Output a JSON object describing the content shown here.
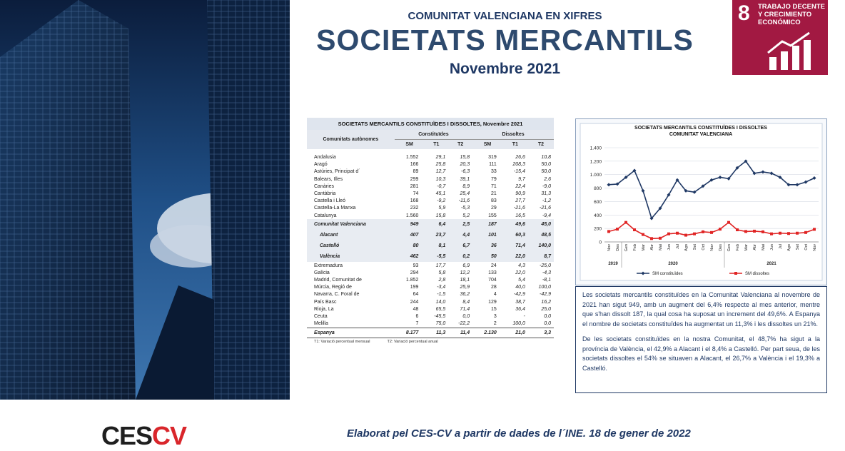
{
  "header": {
    "kicker": "COMUNITAT VALENCIANA EN XIFRES",
    "title": "SOCIETATS MERCANTILS",
    "subtitle": "Novembre 2021"
  },
  "sdg": {
    "number": "8",
    "label": "TRABAJO DECENTE Y CRECIMIENTO ECONÓMICO"
  },
  "table": {
    "title": "SOCIETATS MERCANTILS CONSTITUÏDES I DISSOLTES, Novembre 2021",
    "header": {
      "region": "Comunitats autònomes",
      "groups": [
        "Constituïdes",
        "Dissoltes"
      ],
      "columns": [
        "SM",
        "T1",
        "T2",
        "SM",
        "T1",
        "T2"
      ]
    },
    "rows": [
      [
        "Andalusia",
        "1.552",
        "29,1",
        "15,8",
        "319",
        "26,6",
        "10,8"
      ],
      [
        "Aragó",
        "166",
        "25,8",
        "20,3",
        "111",
        "208,3",
        "50,0"
      ],
      [
        "Astúries, Principat d´",
        "89",
        "12,7",
        "-6,3",
        "33",
        "-15,4",
        "50,0"
      ],
      [
        "Balears, Illes",
        "299",
        "10,3",
        "39,1",
        "79",
        "9,7",
        "2,6"
      ],
      [
        "Canàries",
        "281",
        "-0,7",
        "8,9",
        "71",
        "22,4",
        "-9,0"
      ],
      [
        "Cantàbria",
        "74",
        "45,1",
        "25,4",
        "21",
        "90,9",
        "31,3"
      ],
      [
        "Castella i Lleó",
        "168",
        "-9,2",
        "-11,6",
        "83",
        "27,7",
        "-1,2"
      ],
      [
        "Castella-La Manxa",
        "232",
        "5,9",
        "-5,3",
        "29",
        "-21,6",
        "-21,6"
      ],
      [
        "Catalunya",
        "1.560",
        "15,8",
        "5,2",
        "155",
        "16,5",
        "-9,4"
      ],
      [
        "Comunitat Valenciana",
        "949",
        "6,4",
        "2,5",
        "187",
        "49,6",
        "45,0"
      ],
      [
        "Alacant",
        "407",
        "23,7",
        "4,4",
        "101",
        "60,3",
        "48,5"
      ],
      [
        "Castelló",
        "80",
        "8,1",
        "6,7",
        "36",
        "71,4",
        "140,0"
      ],
      [
        "València",
        "462",
        "-5,5",
        "0,2",
        "50",
        "22,0",
        "8,7"
      ],
      [
        "Extremadura",
        "93",
        "17,7",
        "6,9",
        "24",
        "4,3",
        "-25,0"
      ],
      [
        "Galícia",
        "294",
        "5,8",
        "12,2",
        "133",
        "22,0",
        "-4,3"
      ],
      [
        "Madrid, Comunitat de",
        "1.852",
        "2,8",
        "18,1",
        "704",
        "5,4",
        "-8,1"
      ],
      [
        "Múrcia, Regió de",
        "199",
        "-3,4",
        "25,9",
        "28",
        "40,0",
        "100,0"
      ],
      [
        "Navarra, C. Foral de",
        "64",
        "-1,5",
        "36,2",
        "4",
        "-42,9",
        "-42,9"
      ],
      [
        "País Basc",
        "244",
        "14,0",
        "8,4",
        "129",
        "38,7",
        "16,2"
      ],
      [
        "Rioja, La",
        "48",
        "65,5",
        "71,4",
        "15",
        "36,4",
        "25,0"
      ],
      [
        "Ceuta",
        "6",
        "-45,5",
        "0,0",
        "3",
        "-",
        "0,0"
      ],
      [
        "Melilla",
        "7",
        "75,0",
        "-22,2",
        "2",
        "100,0",
        "0,0"
      ]
    ],
    "total": [
      "Espanya",
      "8.177",
      "11,3",
      "11,4",
      "2.130",
      "21,0",
      "3,3"
    ],
    "notes": [
      "T1: Variació percentual mensual",
      "T2: Variació percentual anual"
    ]
  },
  "chart_data": {
    "type": "line",
    "title": "SOCIETATS MERCANTILS CONSTITUÏDES I DISSOLTES",
    "subtitle": "COMUNITAT VALENCIANA",
    "categories": [
      "Nov",
      "Des",
      "Gen",
      "Feb",
      "Mar",
      "Abr",
      "Mai",
      "Jun",
      "Jul",
      "Ago",
      "Set",
      "Oct",
      "Nov",
      "Des",
      "Gen",
      "Feb",
      "Mar",
      "Abr",
      "Mai",
      "Jun",
      "Jul",
      "Ago",
      "Set",
      "Oct",
      "Nov"
    ],
    "years": [
      "2019",
      "2020",
      "2021"
    ],
    "series": [
      {
        "name": "SM constituïdes",
        "color": "#1f3864",
        "marker": "diamond",
        "values": [
          850,
          860,
          960,
          1060,
          760,
          350,
          500,
          700,
          920,
          760,
          740,
          830,
          920,
          960,
          940,
          1100,
          1200,
          1020,
          1040,
          1020,
          960,
          850,
          850,
          890,
          949
        ]
      },
      {
        "name": "SM dissoltes",
        "color": "#e02424",
        "marker": "square",
        "values": [
          155,
          190,
          290,
          180,
          110,
          50,
          55,
          120,
          130,
          100,
          120,
          150,
          140,
          190,
          290,
          180,
          155,
          160,
          150,
          120,
          130,
          125,
          130,
          140,
          187
        ]
      }
    ],
    "ylim": [
      0,
      1400
    ],
    "yticks": [
      0,
      200,
      400,
      600,
      800,
      {
        "value": 1000,
        "label": "1.000"
      },
      {
        "value": 1200,
        "label": "1.200"
      },
      {
        "value": 1400,
        "label": "1.400"
      }
    ],
    "grid": true,
    "legend": "bottom"
  },
  "text": [
    "Les societats mercantils constituïdes en la Comunitat Valenciana al novembre de 2021 han sigut 949, amb un augment del 6,4% respecte al mes anterior, mentre que s'han dissolt 187, la qual cosa ha suposat un increment del 49,6%. A Espanya el nombre de societats constituïdes ha augmentat un 11,3% i les dissoltes un 21%.",
    "De les societats constituïdes en la nostra Comunitat, el 48,7% ha sigut a la província de València, el 42,9% a Alacant i el 8,4% a Castelló. Per part seua, de les societats dissoltes el 54% se situaven a Alacant, el 26,7% a València i el 19,3% a Castelló."
  ],
  "footer": {
    "logo_a": "CES",
    "logo_b": "CV",
    "credit": "Elaborat pel CES-CV a partir de dades de l´INE. 18 de gener de 2022"
  }
}
